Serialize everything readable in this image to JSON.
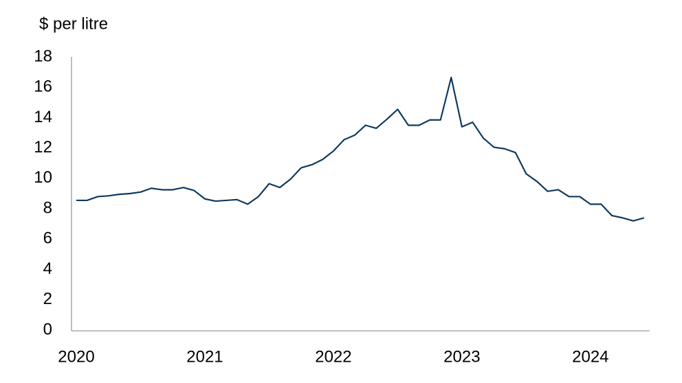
{
  "chart_data": {
    "type": "line",
    "title": "$ per litre",
    "categories": [
      "2020",
      null,
      null,
      null,
      null,
      null,
      null,
      null,
      null,
      null,
      null,
      null,
      "2021",
      null,
      null,
      null,
      null,
      null,
      null,
      null,
      null,
      null,
      null,
      null,
      "2022",
      null,
      null,
      null,
      null,
      null,
      null,
      null,
      null,
      null,
      null,
      null,
      "2023",
      null,
      null,
      null,
      null,
      null,
      null,
      null,
      null,
      null,
      null,
      null,
      "2024",
      null,
      null,
      null,
      null,
      null
    ],
    "values": [
      8.55,
      8.55,
      8.8,
      8.85,
      8.95,
      9.0,
      9.1,
      9.35,
      9.25,
      9.25,
      9.4,
      9.2,
      8.65,
      8.5,
      8.55,
      8.6,
      8.3,
      8.8,
      9.65,
      9.4,
      9.95,
      10.7,
      10.9,
      11.25,
      11.8,
      12.55,
      12.85,
      13.5,
      13.3,
      13.9,
      14.55,
      13.5,
      13.5,
      13.85,
      13.85,
      16.65,
      13.4,
      13.7,
      12.65,
      12.05,
      11.95,
      11.7,
      10.3,
      9.8,
      9.15,
      9.25,
      8.8,
      8.8,
      8.3,
      8.3,
      7.55,
      7.4,
      7.2,
      7.4
    ],
    "color": "#0f3a5f",
    "ylim": [
      0,
      18
    ],
    "yticks": [
      0,
      2,
      4,
      6,
      8,
      10,
      12,
      14,
      16,
      18
    ],
    "grid": false
  }
}
